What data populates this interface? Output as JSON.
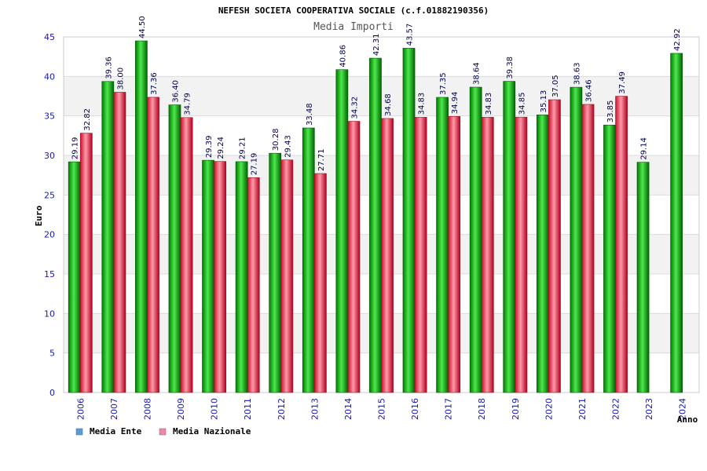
{
  "chart_data": {
    "type": "bar",
    "title": "NEFESH SOCIETA COOPERATIVA SOCIALE (c.f.01882190356)",
    "subtitle": "Media Importi",
    "xlabel": "Anno",
    "ylabel": "Euro",
    "ylim": [
      0,
      45
    ],
    "yticks": [
      "0",
      "5",
      "10",
      "15",
      "20",
      "25",
      "30",
      "35",
      "40",
      "45"
    ],
    "grid": "horizontal bands",
    "legend_position": "bottom-left",
    "categories": [
      "2006",
      "2007",
      "2008",
      "2009",
      "2010",
      "2011",
      "2012",
      "2013",
      "2014",
      "2015",
      "2016",
      "2017",
      "2018",
      "2019",
      "2020",
      "2021",
      "2022",
      "2023",
      "2024"
    ],
    "series": [
      {
        "name": "Media Ente",
        "color": "#00a000",
        "legend_color": "#5b9bd5",
        "values": [
          29.19,
          39.36,
          44.5,
          36.4,
          29.39,
          29.21,
          30.28,
          33.48,
          40.86,
          42.31,
          43.57,
          37.35,
          38.64,
          39.38,
          35.13,
          38.63,
          33.85,
          29.14,
          42.92
        ],
        "labels": [
          "29.19",
          "39.36",
          "44.50",
          "36.40",
          "29.39",
          "29.21",
          "30.28",
          "33.48",
          "40.86",
          "42.31",
          "43.57",
          "37.35",
          "38.64",
          "39.38",
          "35.13",
          "38.63",
          "33.85",
          "29.14",
          "42.92"
        ]
      },
      {
        "name": "Media Nazionale",
        "color": "#e8283c",
        "legend_color": "#e68ab0",
        "values": [
          32.82,
          38.0,
          37.36,
          34.79,
          29.24,
          27.19,
          29.43,
          27.71,
          34.32,
          34.68,
          34.83,
          34.94,
          34.83,
          34.85,
          37.05,
          36.46,
          37.49,
          null,
          null
        ],
        "labels": [
          "32.82",
          "38.00",
          "37.36",
          "34.79",
          "29.24",
          "27.19",
          "29.43",
          "27.71",
          "34.32",
          "34.68",
          "34.83",
          "34.94",
          "34.83",
          "34.85",
          "37.05",
          "36.46",
          "37.49",
          "",
          ""
        ]
      }
    ]
  }
}
